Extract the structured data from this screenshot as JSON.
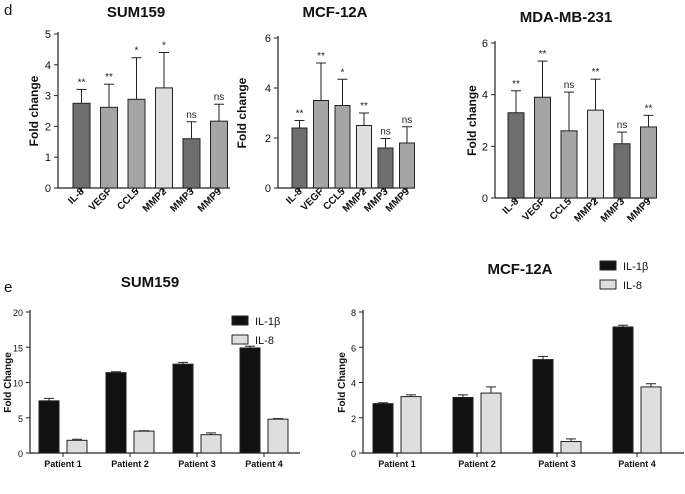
{
  "figure": {
    "panel_d": "d",
    "panel_e": "e"
  },
  "colors": {
    "dark_bar": "#6e6e6e",
    "mid_bar": "#a5a5a5",
    "light_bar": "#dedede",
    "black_bar": "#111111",
    "axis": "#222222"
  },
  "chart_data": [
    {
      "type": "bar",
      "panel": "d",
      "title": "SUM159",
      "ylabel": "Fold change",
      "ylim": [
        0,
        5
      ],
      "yticks": [
        "0",
        "1",
        "2",
        "3",
        "4",
        "5"
      ],
      "categories": [
        "IL-8",
        "VEGF",
        "CCL5",
        "MMP2",
        "MMP3",
        "MMP9"
      ],
      "values": [
        2.75,
        2.62,
        2.88,
        3.25,
        1.6,
        2.17
      ],
      "errors": [
        0.45,
        0.75,
        1.35,
        1.15,
        0.55,
        0.55
      ],
      "significance": [
        "**",
        "**",
        "*",
        "*",
        "ns",
        "ns"
      ],
      "bar_shades": [
        "dark",
        "mid",
        "mid",
        "light",
        "dark",
        "mid"
      ]
    },
    {
      "type": "bar",
      "panel": "d",
      "title": "MCF-12A",
      "ylabel": "Fold change",
      "ylim": [
        0,
        6
      ],
      "yticks": [
        "0",
        "2",
        "4",
        "6"
      ],
      "categories": [
        "IL-8",
        "VEGF",
        "CCL5",
        "MMP2",
        "MMP3",
        "MMP9"
      ],
      "values": [
        2.4,
        3.5,
        3.3,
        2.5,
        1.6,
        1.8
      ],
      "errors": [
        0.3,
        1.5,
        1.05,
        0.5,
        0.38,
        0.65
      ],
      "significance": [
        "**",
        "**",
        "*",
        "**",
        "ns",
        "ns"
      ],
      "bar_shades": [
        "dark",
        "mid",
        "mid",
        "light",
        "dark",
        "mid"
      ]
    },
    {
      "type": "bar",
      "panel": "d",
      "title": "MDA-MB-231",
      "ylabel": "Fold change",
      "ylim": [
        0,
        6
      ],
      "yticks": [
        "0",
        "2",
        "4",
        "6"
      ],
      "categories": [
        "IL-8",
        "VEGF",
        "CCL5",
        "MMP2",
        "MMP3",
        "MMP9"
      ],
      "values": [
        3.3,
        3.9,
        2.6,
        3.4,
        2.1,
        2.75
      ],
      "errors": [
        0.85,
        1.4,
        1.5,
        1.2,
        0.45,
        0.45
      ],
      "significance": [
        "**",
        "**",
        "ns",
        "**",
        "ns",
        "**"
      ],
      "bar_shades": [
        "dark",
        "mid",
        "mid",
        "light",
        "dark",
        "mid"
      ]
    },
    {
      "type": "bar",
      "panel": "e",
      "title": "SUM159",
      "ylabel": "Fold Change",
      "ylim": [
        0,
        20
      ],
      "yticks": [
        "0",
        "5",
        "10",
        "15",
        "20"
      ],
      "categories": [
        "Patient 1",
        "Patient 2",
        "Patient 3",
        "Patient 4"
      ],
      "series": [
        {
          "name": "IL-1β",
          "values": [
            7.4,
            11.4,
            12.6,
            14.9
          ],
          "errors": [
            0.35,
            0.12,
            0.25,
            0.25
          ]
        },
        {
          "name": "IL-8",
          "values": [
            1.8,
            3.1,
            2.6,
            4.8
          ],
          "errors": [
            0.15,
            0.06,
            0.25,
            0.08
          ]
        }
      ],
      "legend": "top-right"
    },
    {
      "type": "bar",
      "panel": "e",
      "title": "MCF-12A",
      "ylabel": "Fold Change",
      "ylim": [
        0,
        8
      ],
      "yticks": [
        "0",
        "2",
        "4",
        "6",
        "8"
      ],
      "categories": [
        "Patient 1",
        "Patient 2",
        "Patient 3",
        "Patient 4"
      ],
      "series": [
        {
          "name": "IL-1β",
          "values": [
            2.8,
            3.15,
            5.3,
            7.15
          ],
          "errors": [
            0.05,
            0.15,
            0.18,
            0.1
          ]
        },
        {
          "name": "IL-8",
          "values": [
            3.2,
            3.4,
            0.65,
            3.75
          ],
          "errors": [
            0.1,
            0.35,
            0.15,
            0.18
          ]
        }
      ],
      "legend": "top-right"
    }
  ]
}
